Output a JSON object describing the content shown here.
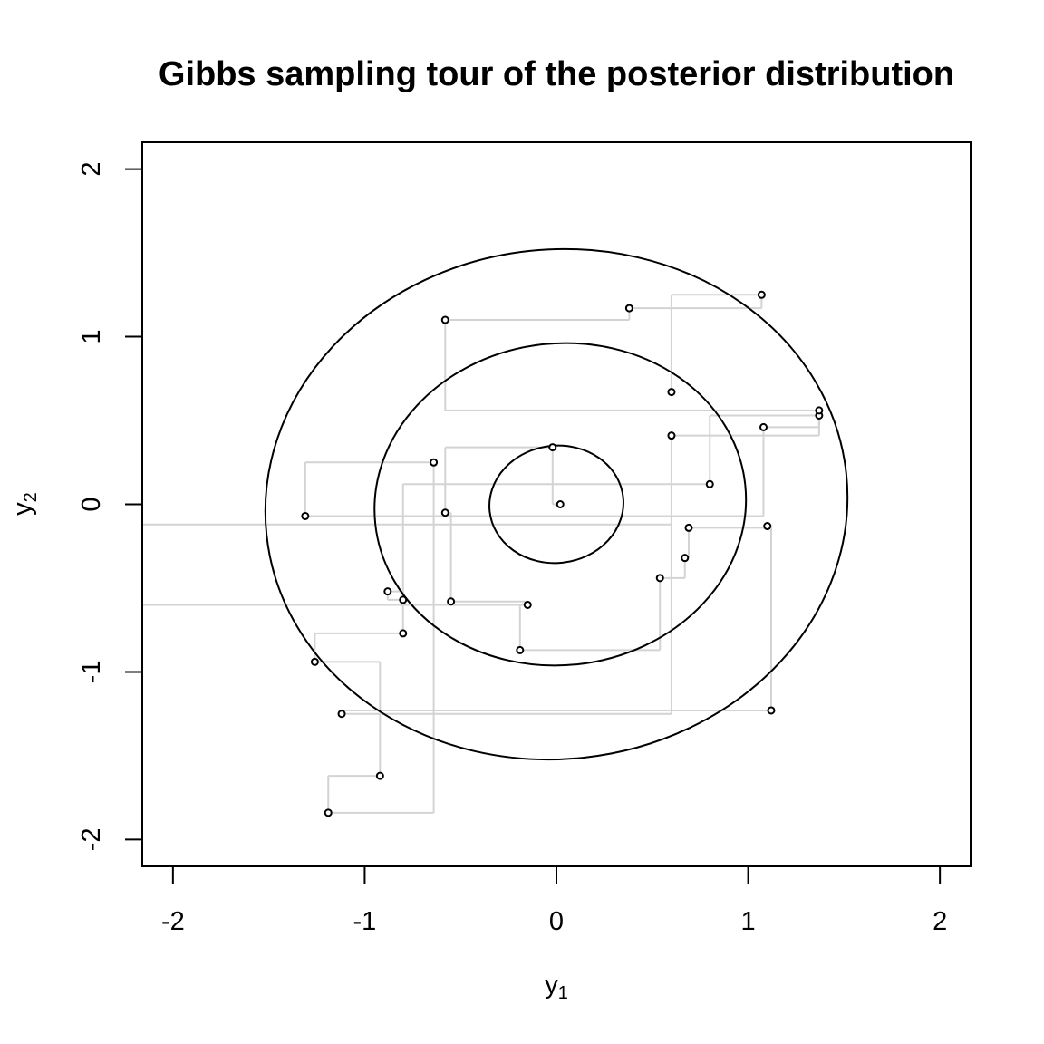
{
  "chart_data": {
    "type": "scatter",
    "title": "Gibbs sampling tour of the posterior distribution",
    "xlabel": {
      "base": "y",
      "sub": "1"
    },
    "ylabel": {
      "base": "y",
      "sub": "2"
    },
    "xlim": [
      -2.16,
      2.16
    ],
    "ylim": [
      -2.16,
      2.16
    ],
    "xticks": [
      -2,
      -1,
      0,
      1,
      2
    ],
    "yticks": [
      -2,
      -1,
      0,
      1,
      2
    ],
    "xtick_labels": [
      "-2",
      "-1",
      "0",
      "1",
      "2"
    ],
    "ytick_labels": [
      "-2",
      "-1",
      "0",
      "1",
      "2"
    ],
    "contours": [
      {
        "level": "inner",
        "center": [
          0.0,
          0.0
        ],
        "semi_x": 0.35,
        "semi_y": 0.35,
        "tilt_deg": -6
      },
      {
        "level": "middle",
        "center": [
          0.02,
          0.0
        ],
        "semi_x": 0.97,
        "semi_y": 0.96,
        "tilt_deg": -6
      },
      {
        "level": "outer",
        "center": [
          0.0,
          0.0
        ],
        "semi_x": 1.52,
        "semi_y": 1.52,
        "tilt_deg": -6
      }
    ],
    "series": [
      {
        "points": [
          [
            0.02,
            0.0
          ],
          [
            -0.02,
            0.34
          ],
          [
            -0.58,
            -0.05
          ],
          [
            -0.55,
            -0.58
          ],
          [
            -0.15,
            -0.6
          ],
          [
            -0.19,
            -0.87
          ],
          [
            0.54,
            -0.44
          ],
          [
            0.67,
            -0.32
          ],
          [
            0.69,
            -0.14
          ],
          [
            1.1,
            -0.13
          ],
          [
            1.12,
            -1.23
          ],
          [
            -1.12,
            -1.25
          ],
          [
            0.6,
            0.41
          ],
          [
            1.37,
            0.53
          ],
          [
            0.8,
            0.12
          ],
          [
            -0.8,
            -0.57
          ],
          [
            -0.88,
            -0.52
          ],
          [
            -0.8,
            -0.77
          ],
          [
            -1.26,
            -0.94
          ],
          [
            -0.92,
            -1.62
          ],
          [
            -1.19,
            -1.84
          ],
          [
            -0.64,
            0.25
          ],
          [
            -1.31,
            -0.07
          ],
          [
            1.08,
            0.46
          ],
          [
            1.37,
            0.56
          ],
          [
            -0.58,
            1.1
          ],
          [
            0.38,
            1.17
          ],
          [
            1.07,
            1.25
          ],
          [
            0.6,
            0.67
          ]
        ]
      }
    ],
    "path_color": "#d3d3d3",
    "contour_color": "#000000",
    "point_color": "#000000"
  }
}
